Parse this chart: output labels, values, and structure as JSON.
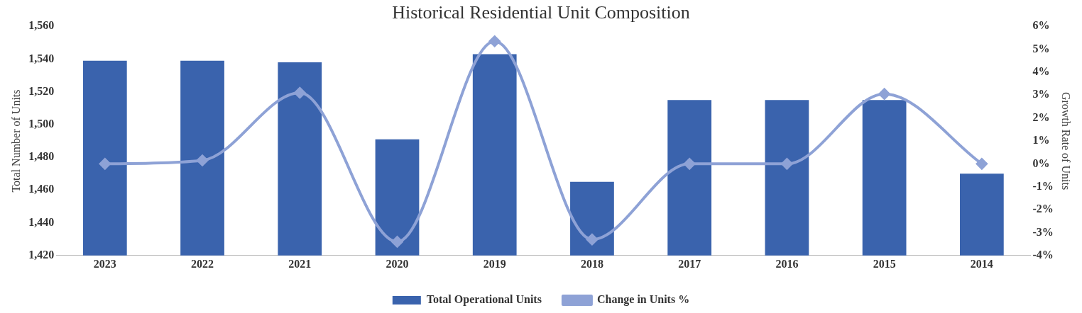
{
  "chart_data": {
    "type": "bar",
    "title": "Historical Residential Unit Composition",
    "ylabel": "Total Number of Units",
    "y2label": "Growth Rate of Units",
    "categories": [
      "2023",
      "2022",
      "2021",
      "2020",
      "2019",
      "2018",
      "2017",
      "2016",
      "2015",
      "2014"
    ],
    "series": [
      {
        "name": "Total Operational Units",
        "color": "#3a63ad",
        "values": [
          1539,
          1539,
          1538,
          1491,
          1543,
          1465,
          1515,
          1515,
          1515,
          1470
        ]
      },
      {
        "name": "Change in Units %",
        "type": "line",
        "axis": "y2",
        "color": "#8ea2d6",
        "marker": "diamond",
        "values": [
          0,
          0.15,
          3.1,
          -3.4,
          5.35,
          -3.3,
          0,
          0,
          3.05,
          0
        ]
      }
    ],
    "ylim": [
      1420,
      1560
    ],
    "yticks": [
      {
        "value": 1420,
        "label": "1,420"
      },
      {
        "value": 1440,
        "label": "1,440"
      },
      {
        "value": 1460,
        "label": "1,460"
      },
      {
        "value": 1480,
        "label": "1,480"
      },
      {
        "value": 1500,
        "label": "1,500"
      },
      {
        "value": 1520,
        "label": "1,520"
      },
      {
        "value": 1540,
        "label": "1,540"
      },
      {
        "value": 1560,
        "label": "1,560"
      }
    ],
    "y2lim": [
      -4,
      6
    ],
    "y2ticks": [
      {
        "value": -4,
        "label": "-4%"
      },
      {
        "value": -3,
        "label": "-3%"
      },
      {
        "value": -2,
        "label": "-2%"
      },
      {
        "value": -1,
        "label": "-1%"
      },
      {
        "value": 0,
        "label": "0%"
      },
      {
        "value": 1,
        "label": "1%"
      },
      {
        "value": 2,
        "label": "2%"
      },
      {
        "value": 3,
        "label": "3%"
      },
      {
        "value": 4,
        "label": "4%"
      },
      {
        "value": 5,
        "label": "5%"
      },
      {
        "value": 6,
        "label": "6%"
      }
    ],
    "grid": false,
    "legend": "bottom"
  }
}
